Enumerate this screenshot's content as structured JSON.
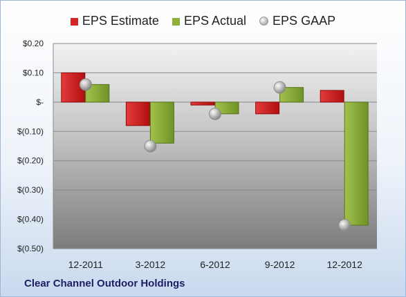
{
  "chart_data": {
    "type": "bar",
    "categories": [
      "12-2011",
      "3-2012",
      "6-2012",
      "9-2012",
      "12-2012"
    ],
    "series": [
      {
        "name": "EPS Estimate",
        "kind": "bar",
        "color": "#d42424",
        "values": [
          0.1,
          -0.08,
          -0.01,
          -0.04,
          0.04
        ]
      },
      {
        "name": "EPS Actual",
        "kind": "bar",
        "color": "#8fb13a",
        "values": [
          0.06,
          -0.14,
          -0.04,
          0.05,
          -0.42
        ]
      },
      {
        "name": "EPS GAAP",
        "kind": "point",
        "color": "#b0b0b0",
        "values": [
          0.06,
          -0.15,
          -0.04,
          0.05,
          -0.42
        ]
      }
    ],
    "ylim": [
      -0.5,
      0.2
    ],
    "yticks": [
      0.2,
      0.1,
      0,
      -0.1,
      -0.2,
      -0.3,
      -0.4,
      -0.5
    ],
    "ytick_labels": [
      "$0.20",
      "$0.10",
      "$-",
      "$(0.10)",
      "$(0.20)",
      "$(0.30)",
      "$(0.40)",
      "$(0.50)"
    ],
    "grid": true,
    "legend_position": "top"
  },
  "footer": {
    "company": "Clear Channel Outdoor Holdings"
  }
}
